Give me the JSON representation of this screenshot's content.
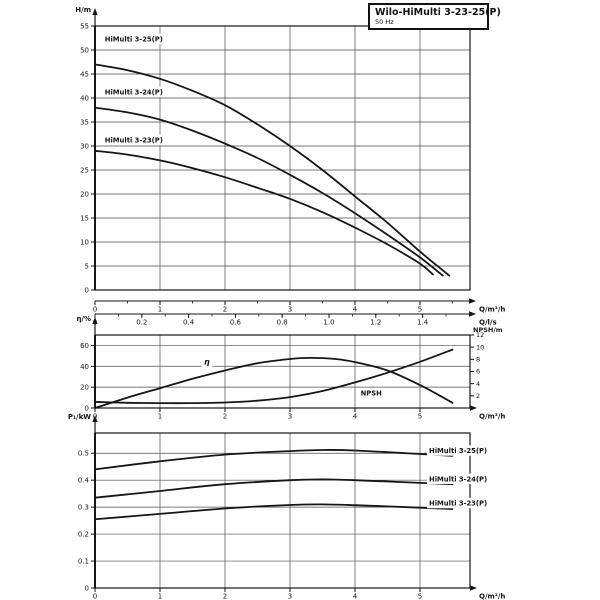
{
  "title_box": {
    "title": "Wilo-HiMulti 3-23-25(P)",
    "subtitle": "50 Hz"
  },
  "colors": {
    "curve": "#161616",
    "grid": "#4d4d4d",
    "axis": "#161616",
    "background": "#ffffff",
    "label_bg": "#ffffff"
  },
  "chart_data": [
    {
      "type": "line",
      "id": "head-flow-curves",
      "title": "",
      "ylabel": "H/m",
      "ylim": [
        0,
        55
      ],
      "ytick_step": 5,
      "xlim": [
        0,
        5.77
      ],
      "grid": true,
      "x_axis_primary": {
        "label": "Q/m³/h",
        "ticks": [
          0,
          1,
          2,
          3,
          4,
          5
        ]
      },
      "x_axis_secondary": {
        "label": "Q/l/s",
        "m3h_per_unit": 3.6,
        "ticks": [
          0,
          0.2,
          0.4,
          0.6,
          0.8,
          1.0,
          1.2,
          1.4
        ],
        "tick_labels": [
          "0",
          "0.2",
          "0.4",
          "0.6",
          "0.8",
          "1.0",
          "1.2",
          "1.4"
        ]
      },
      "series": [
        {
          "name": "HiMulti 3-25(P)",
          "label_at": [
            0.15,
            52.3
          ],
          "points": [
            [
              0,
              47
            ],
            [
              0.5,
              45.8
            ],
            [
              1,
              44
            ],
            [
              1.5,
              41.5
            ],
            [
              2,
              38.5
            ],
            [
              2.5,
              34.5
            ],
            [
              3,
              30
            ],
            [
              3.5,
              25
            ],
            [
              4,
              19.5
            ],
            [
              4.5,
              14
            ],
            [
              5,
              8
            ],
            [
              5.45,
              3
            ]
          ]
        },
        {
          "name": "HiMulti 3-24(P)",
          "label_at": [
            0.15,
            41.3
          ],
          "points": [
            [
              0,
              38
            ],
            [
              0.5,
              37
            ],
            [
              1,
              35.5
            ],
            [
              1.5,
              33.2
            ],
            [
              2,
              30.5
            ],
            [
              2.5,
              27.5
            ],
            [
              3,
              24
            ],
            [
              3.5,
              20.2
            ],
            [
              4,
              16
            ],
            [
              4.5,
              11.5
            ],
            [
              5,
              6.8
            ],
            [
              5.35,
              3
            ]
          ]
        },
        {
          "name": "HiMulti 3-23(P)",
          "label_at": [
            0.15,
            31.3
          ],
          "points": [
            [
              0,
              29
            ],
            [
              0.5,
              28.2
            ],
            [
              1,
              27
            ],
            [
              1.5,
              25.4
            ],
            [
              2,
              23.5
            ],
            [
              2.5,
              21.3
            ],
            [
              3,
              19
            ],
            [
              3.5,
              16.2
            ],
            [
              4,
              13
            ],
            [
              4.5,
              9.5
            ],
            [
              5,
              5.5
            ],
            [
              5.2,
              3.2
            ]
          ]
        }
      ]
    },
    {
      "type": "line",
      "id": "efficiency-npsh-curves",
      "title": "",
      "ylabel": "η/%",
      "ylim": [
        0,
        70
      ],
      "yticks": [
        0,
        20,
        40,
        60
      ],
      "y2label": "NPSH/m",
      "y2lim": [
        0,
        12
      ],
      "y2ticks": [
        2,
        4,
        6,
        8,
        10,
        12
      ],
      "xlim": [
        0,
        5.77
      ],
      "grid": true,
      "x_axis_primary": {
        "label": "Q/m³/h",
        "ticks": [
          0,
          1,
          2,
          3,
          4,
          5
        ]
      },
      "series": [
        {
          "name": "η",
          "axis": "left",
          "label_at": [
            1.72,
            44
          ],
          "points": [
            [
              0,
              0
            ],
            [
              0.5,
              10
            ],
            [
              1,
              19
            ],
            [
              1.5,
              28
            ],
            [
              2,
              36
            ],
            [
              2.5,
              43
            ],
            [
              3,
              47
            ],
            [
              3.3,
              48
            ],
            [
              3.7,
              47
            ],
            [
              4,
              44
            ],
            [
              4.5,
              36
            ],
            [
              5,
              22
            ],
            [
              5.5,
              5
            ]
          ]
        },
        {
          "name": "NPSH",
          "axis": "right",
          "label_at": [
            4.25,
            2.5
          ],
          "points": [
            [
              0,
              1.0
            ],
            [
              0.5,
              0.85
            ],
            [
              1,
              0.8
            ],
            [
              1.5,
              0.8
            ],
            [
              2,
              0.9
            ],
            [
              2.5,
              1.2
            ],
            [
              3,
              1.8
            ],
            [
              3.5,
              2.8
            ],
            [
              4,
              4.2
            ],
            [
              4.5,
              5.8
            ],
            [
              5,
              7.6
            ],
            [
              5.5,
              9.6
            ]
          ]
        }
      ]
    },
    {
      "type": "line",
      "id": "power-flow-curves",
      "title": "",
      "ylabel": "P₁/kW",
      "ylim": [
        0,
        0.575
      ],
      "yticks": [
        0,
        0.1,
        0.2,
        0.3,
        0.4,
        0.5
      ],
      "xlim": [
        0,
        5.77
      ],
      "grid": true,
      "x_axis_primary": {
        "label": "Q/m³/h",
        "ticks": [
          0,
          1,
          2,
          3,
          4,
          5
        ]
      },
      "series": [
        {
          "name": "HiMulti 3-25(P)",
          "label_at": [
            5.6,
            0.51
          ],
          "points": [
            [
              0,
              0.44
            ],
            [
              1,
              0.47
            ],
            [
              2,
              0.495
            ],
            [
              3,
              0.508
            ],
            [
              3.5,
              0.512
            ],
            [
              4,
              0.51
            ],
            [
              5,
              0.497
            ],
            [
              5.5,
              0.49
            ]
          ]
        },
        {
          "name": "HiMulti 3-24(P)",
          "label_at": [
            5.6,
            0.405
          ],
          "points": [
            [
              0,
              0.335
            ],
            [
              1,
              0.36
            ],
            [
              2,
              0.385
            ],
            [
              3,
              0.4
            ],
            [
              3.5,
              0.403
            ],
            [
              4,
              0.4
            ],
            [
              5,
              0.39
            ],
            [
              5.5,
              0.385
            ]
          ]
        },
        {
          "name": "HiMulti 3-23(P)",
          "label_at": [
            5.6,
            0.315
          ],
          "points": [
            [
              0,
              0.255
            ],
            [
              1,
              0.275
            ],
            [
              2,
              0.295
            ],
            [
              3,
              0.308
            ],
            [
              3.5,
              0.31
            ],
            [
              4,
              0.307
            ],
            [
              5,
              0.298
            ],
            [
              5.5,
              0.293
            ]
          ]
        }
      ]
    }
  ]
}
